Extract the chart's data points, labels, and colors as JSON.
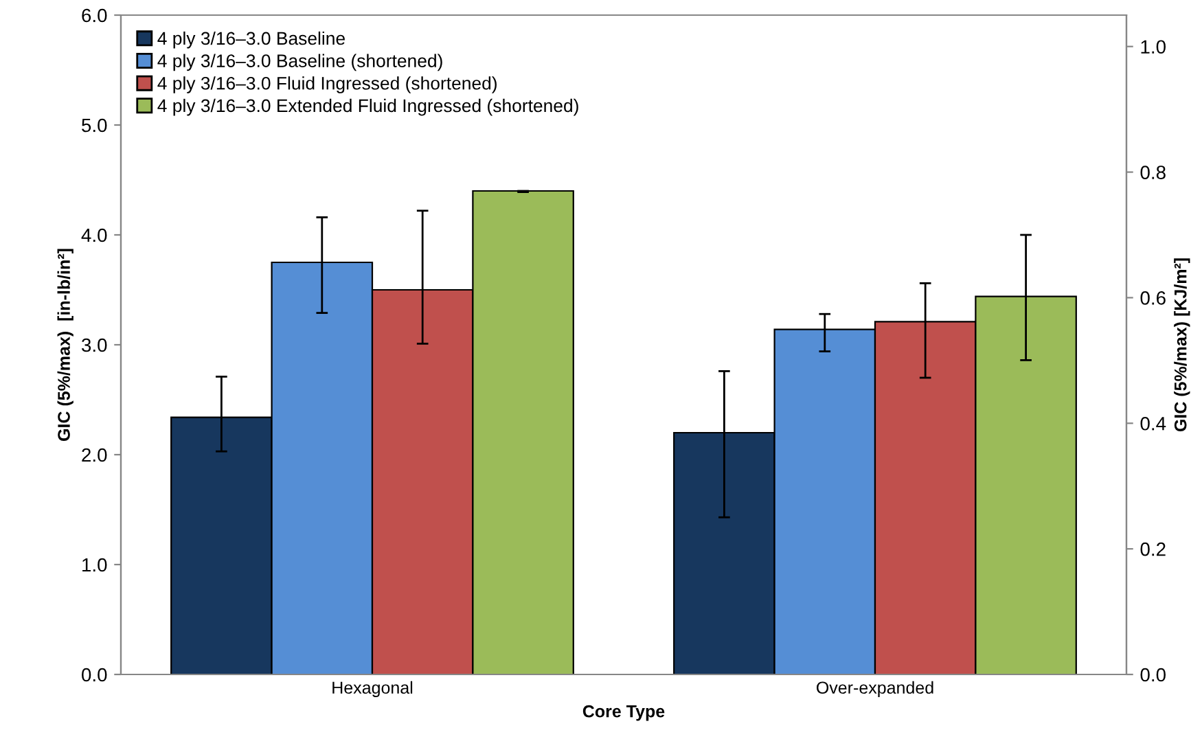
{
  "chart_data": {
    "type": "bar",
    "xlabel": "Core Type",
    "ylabel": "GIC (5%/max)  [in-lb/in²]",
    "y2label": "GIC (5%/max) [KJ/m²]",
    "categories": [
      "Hexagonal",
      "Over-expanded"
    ],
    "series": [
      {
        "name": "4 ply 3/16–3.0 Baseline",
        "color": "#17375e",
        "values": [
          2.34,
          2.2
        ],
        "errors": [
          [
            2.03,
            2.71
          ],
          [
            1.43,
            2.76
          ]
        ]
      },
      {
        "name": "4 ply 3/16–3.0 Baseline (shortened)",
        "color": "#558ed5",
        "values": [
          3.75,
          3.14
        ],
        "errors": [
          [
            3.29,
            4.16
          ],
          [
            2.94,
            3.28
          ]
        ]
      },
      {
        "name": "4 ply 3/16–3.0 Fluid Ingressed (shortened)",
        "color": "#c0504d",
        "values": [
          3.5,
          3.21
        ],
        "errors": [
          [
            3.01,
            4.22
          ],
          [
            2.7,
            3.56
          ]
        ]
      },
      {
        "name": "4 ply 3/16–3.0 Extended Fluid Ingressed (shortened)",
        "color": "#9bbb59",
        "values": [
          4.4,
          3.44
        ],
        "errors": [
          [
            4.39,
            4.4
          ],
          [
            2.86,
            4.0
          ]
        ]
      }
    ],
    "ylim": [
      0,
      6
    ],
    "yticks": [
      {
        "value": 0,
        "label": "0.0"
      },
      {
        "value": 1,
        "label": "1.0"
      },
      {
        "value": 2,
        "label": "2.0"
      },
      {
        "value": 3,
        "label": "3.0"
      },
      {
        "value": 4,
        "label": "4.0"
      },
      {
        "value": 5,
        "label": "5.0"
      },
      {
        "value": 6,
        "label": "6.0"
      }
    ],
    "y2lim": [
      0,
      1.05
    ],
    "y2ticks": [
      {
        "value": 0,
        "label": "0.0"
      },
      0.2,
      0.4,
      0.6,
      0.8,
      {
        "value": 1,
        "label": "1.0"
      }
    ],
    "grid": false,
    "legend": "top left"
  }
}
